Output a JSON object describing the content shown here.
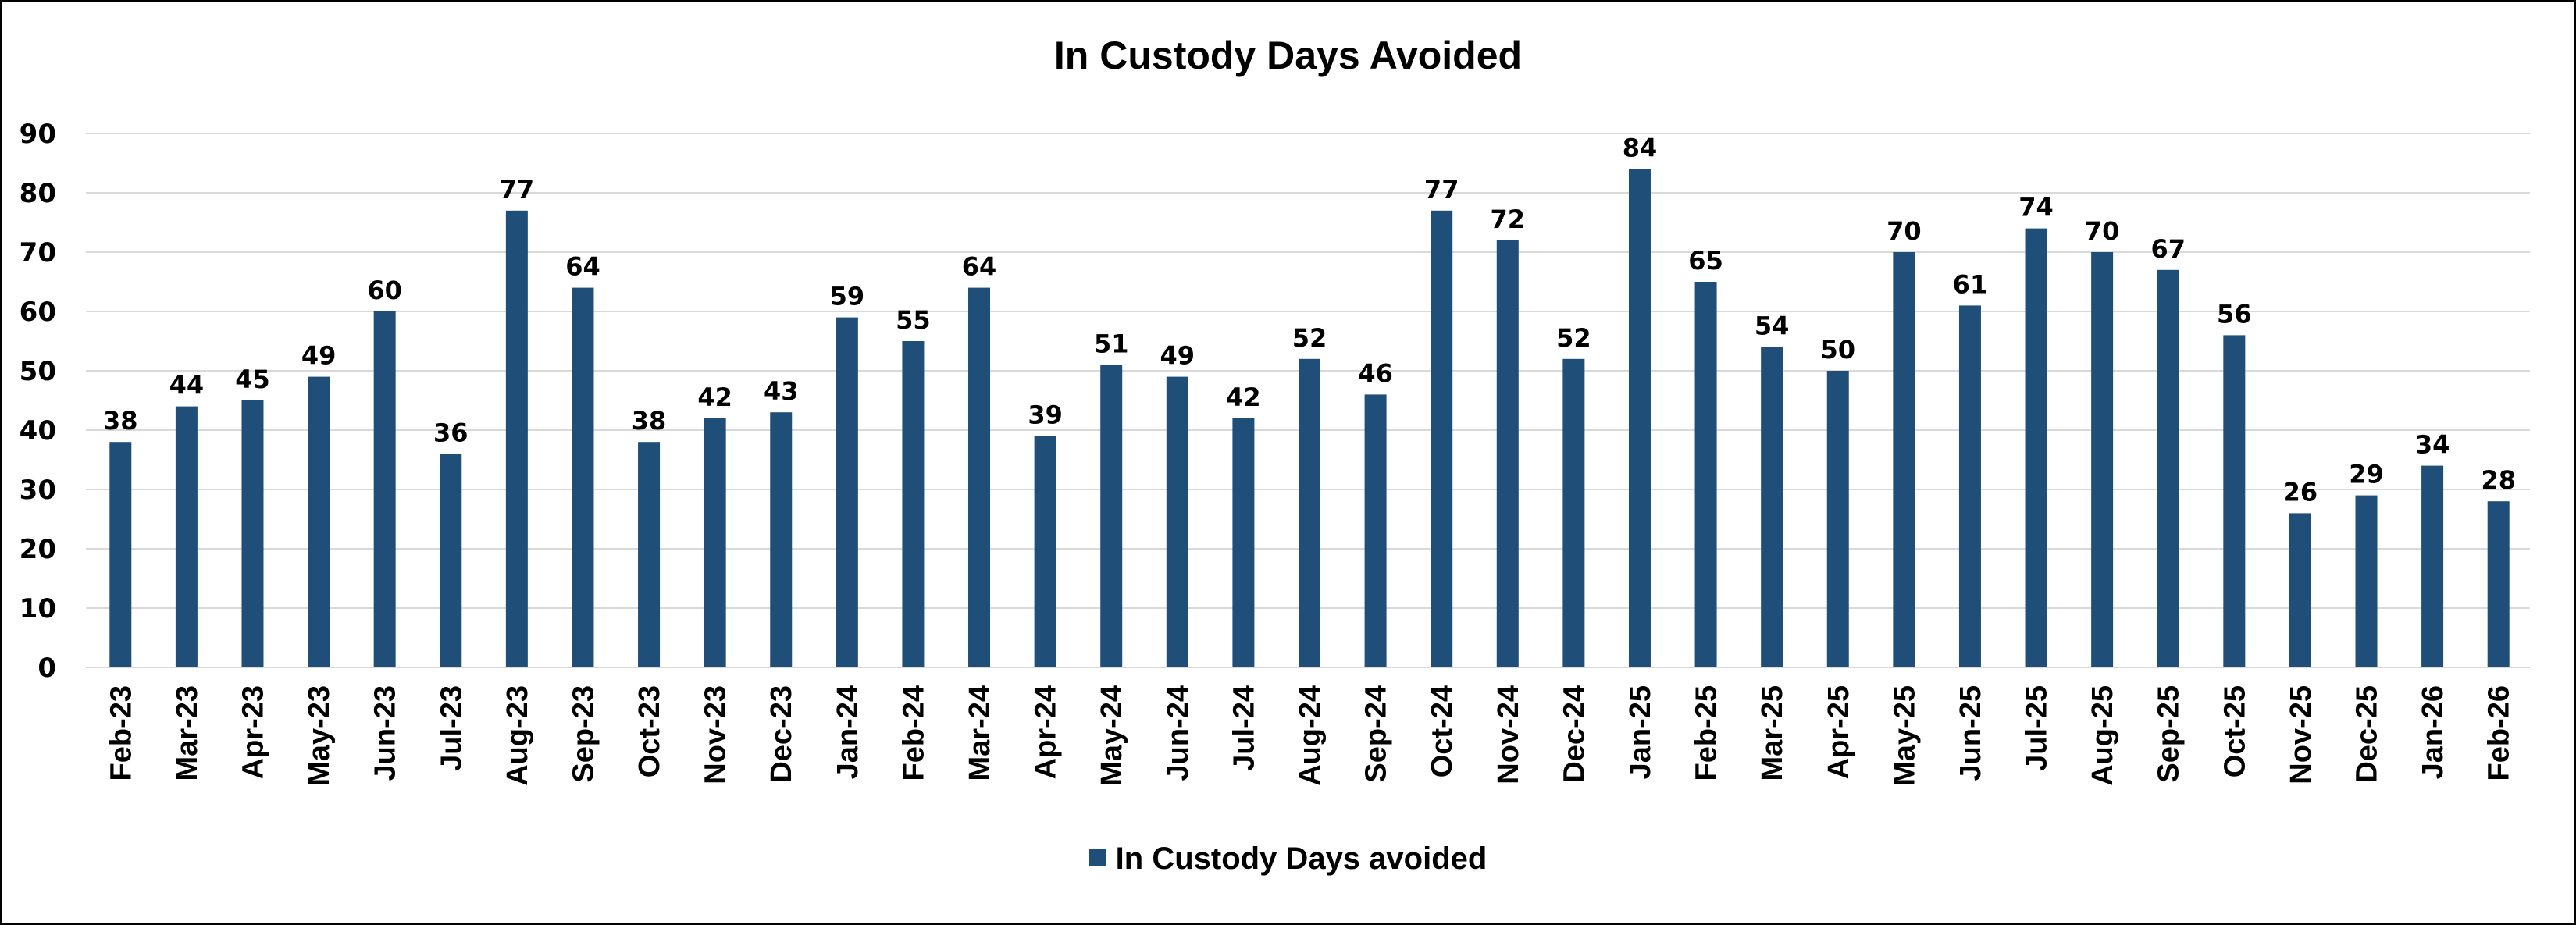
{
  "chart_data": {
    "type": "bar",
    "title": "In Custody Days Avoided",
    "xlabel": "",
    "ylabel": "",
    "ylim": [
      0,
      90
    ],
    "yticks": [
      0,
      10,
      20,
      30,
      40,
      50,
      60,
      70,
      80,
      90
    ],
    "grid": true,
    "legend_position": "bottom",
    "bar_color": "#1F4E79",
    "categories": [
      "Feb-23",
      "Mar-23",
      "Apr-23",
      "May-23",
      "Jun-23",
      "Jul-23",
      "Aug-23",
      "Sep-23",
      "Oct-23",
      "Nov-23",
      "Dec-23",
      "Jan-24",
      "Feb-24",
      "Mar-24",
      "Apr-24",
      "May-24",
      "Jun-24",
      "Jul-24",
      "Aug-24",
      "Sep-24",
      "Oct-24",
      "Nov-24",
      "Dec-24",
      "Jan-25",
      "Feb-25",
      "Mar-25",
      "Apr-25",
      "May-25",
      "Jun-25",
      "Jul-25",
      "Aug-25",
      "Sep-25",
      "Oct-25",
      "Nov-25",
      "Dec-25",
      "Jan-26",
      "Feb-26"
    ],
    "series": [
      {
        "name": "In Custody Days avoided",
        "values": [
          38,
          44,
          45,
          49,
          60,
          36,
          77,
          64,
          38,
          42,
          43,
          59,
          55,
          64,
          39,
          51,
          49,
          42,
          52,
          46,
          77,
          72,
          52,
          84,
          65,
          54,
          50,
          70,
          61,
          74,
          70,
          67,
          56,
          26,
          29,
          34,
          28
        ]
      }
    ]
  }
}
